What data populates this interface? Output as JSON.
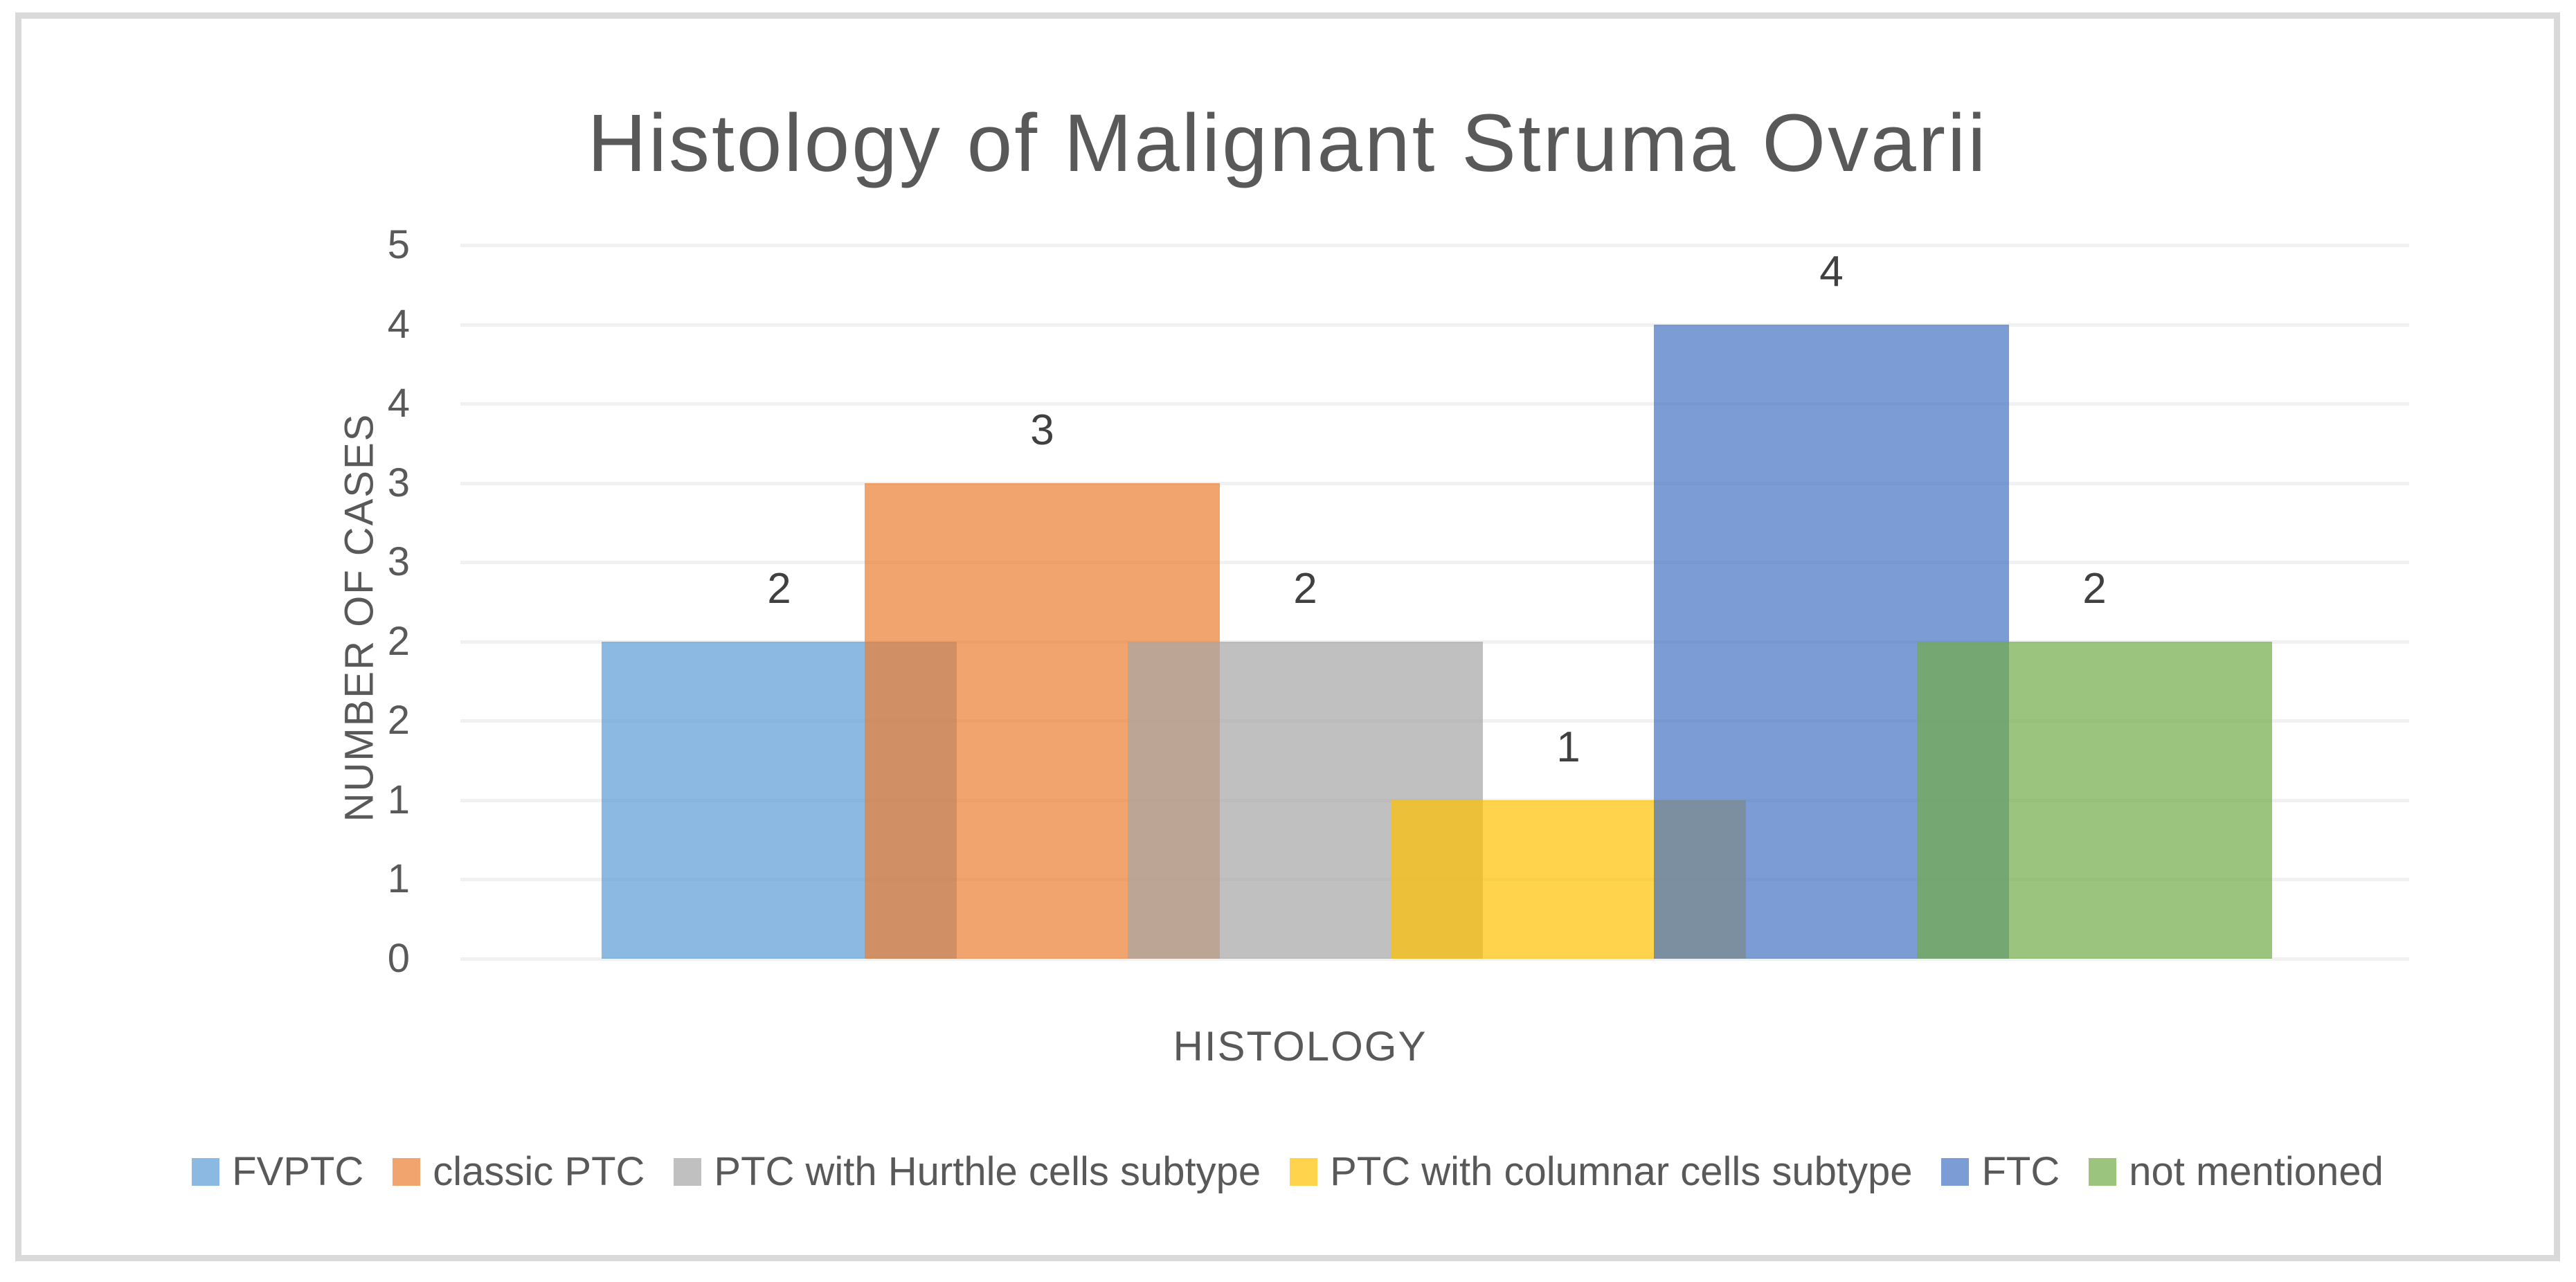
{
  "chart": {
    "title": "Histology of Malignant Struma Ovarii",
    "y_axis": {
      "title": "NUMBER OF CASES",
      "tick_labels_top_to_bottom": [
        "5",
        "4",
        "4",
        "3",
        "3",
        "2",
        "2",
        "1",
        "1",
        "0"
      ]
    },
    "x_axis": {
      "title": "HISTOLOGY"
    },
    "frame_border_color": "#d9d9d9",
    "gridline_color": "#f1f1f1",
    "text_color": "#595959",
    "data_label_color": "#404040"
  },
  "chart_data": {
    "type": "bar",
    "title": "Histology of Malignant Struma Ovarii",
    "xlabel": "HISTOLOGY",
    "ylabel": "NUMBER OF CASES",
    "ylim": [
      0,
      4.5
    ],
    "gridline_step": 0.5,
    "grid": true,
    "y_tick_display": "0.5 steps rounded to integers: 0,1,1,2,2,3,3,4,4,5",
    "legend_position": "bottom",
    "bar_style": "overlapping semi-transparent series, single category",
    "fill_opacity": 0.7,
    "categories": [
      ""
    ],
    "series": [
      {
        "name": "FVPTC",
        "values": [
          2
        ],
        "data_label": "2",
        "color": "#5B9BD5"
      },
      {
        "name": "classic PTC",
        "values": [
          3
        ],
        "data_label": "3",
        "color": "#ED7D31"
      },
      {
        "name": "PTC with Hurthle cells subtype",
        "values": [
          2
        ],
        "data_label": "2",
        "color": "#A5A5A5"
      },
      {
        "name": "PTC with columnar cells subtype",
        "values": [
          1
        ],
        "data_label": "1",
        "color": "#FFC000"
      },
      {
        "name": "FTC",
        "values": [
          4
        ],
        "data_label": "4",
        "color": "#4472C4"
      },
      {
        "name": "not mentioned",
        "values": [
          2
        ],
        "data_label": "2",
        "color": "#70AD47"
      }
    ]
  }
}
